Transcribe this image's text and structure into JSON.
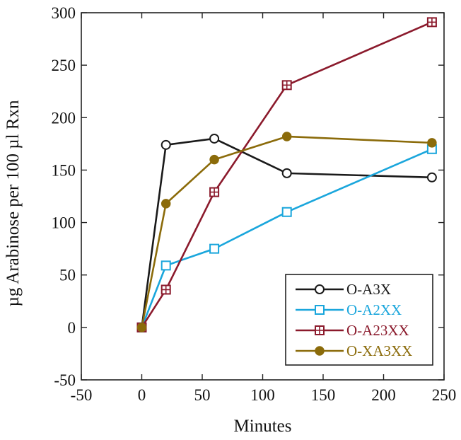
{
  "chart_data": {
    "type": "line",
    "title": "",
    "xlabel": "Minutes",
    "ylabel": "µg Arabinose per 100 µl Rxn",
    "xlim": [
      -50,
      250
    ],
    "ylim": [
      -50,
      300
    ],
    "xticks": [
      -50,
      0,
      50,
      100,
      150,
      200,
      250
    ],
    "yticks": [
      -50,
      0,
      50,
      100,
      150,
      200,
      250,
      300
    ],
    "grid": false,
    "legend_position": "bottom-right",
    "series": [
      {
        "name": "O-A3X",
        "color": "#1a1a1a",
        "marker": "open-circle",
        "points": [
          [
            0,
            0
          ],
          [
            20,
            174
          ],
          [
            60,
            180
          ],
          [
            120,
            147
          ],
          [
            240,
            143
          ]
        ]
      },
      {
        "name": "O-A2XX",
        "color": "#1aa6dc",
        "marker": "open-square",
        "points": [
          [
            0,
            0
          ],
          [
            20,
            59
          ],
          [
            60,
            75
          ],
          [
            120,
            110
          ],
          [
            240,
            170
          ]
        ]
      },
      {
        "name": "O-A23XX",
        "color": "#8b1a2c",
        "marker": "crossed-square",
        "points": [
          [
            0,
            0
          ],
          [
            20,
            36
          ],
          [
            60,
            129
          ],
          [
            120,
            231
          ],
          [
            240,
            291
          ]
        ]
      },
      {
        "name": "O-XA3XX",
        "color": "#8b6b0a",
        "marker": "filled-circle",
        "points": [
          [
            0,
            0
          ],
          [
            20,
            118
          ],
          [
            60,
            160
          ],
          [
            120,
            182
          ],
          [
            240,
            176
          ]
        ]
      }
    ]
  }
}
